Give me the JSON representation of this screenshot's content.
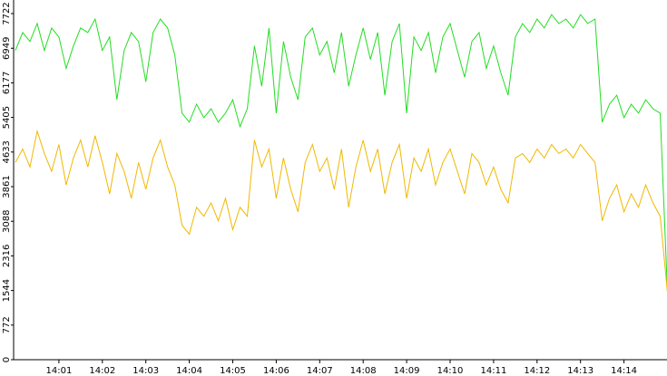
{
  "chart_data": {
    "type": "line",
    "categories": [
      null,
      null,
      null,
      null,
      null,
      null,
      "14:01",
      null,
      null,
      null,
      null,
      null,
      "14:02",
      null,
      null,
      null,
      null,
      null,
      "14:03",
      null,
      null,
      null,
      null,
      null,
      "14:04",
      null,
      null,
      null,
      null,
      null,
      "14:05",
      null,
      null,
      null,
      null,
      null,
      "14:06",
      null,
      null,
      null,
      null,
      null,
      "14:07",
      null,
      null,
      null,
      null,
      null,
      "14:08",
      null,
      null,
      null,
      null,
      null,
      "14:09",
      null,
      null,
      null,
      null,
      null,
      "14:10",
      null,
      null,
      null,
      null,
      null,
      "14:11",
      null,
      null,
      null,
      null,
      null,
      "14:12",
      null,
      null,
      null,
      null,
      null,
      "14:13",
      null,
      null,
      null,
      null,
      null,
      "14:14",
      null,
      null,
      null,
      null,
      null,
      null
    ],
    "series": [
      {
        "color": "#22dd22",
        "values": [
          6900,
          7300,
          7100,
          7500,
          6900,
          7400,
          7200,
          6500,
          7000,
          7400,
          7300,
          7600,
          6900,
          7200,
          5800,
          6900,
          7300,
          7100,
          6200,
          7300,
          7600,
          7400,
          6800,
          5500,
          5300,
          5700,
          5400,
          5600,
          5300,
          5500,
          5800,
          5200,
          5600,
          7000,
          6100,
          7400,
          5500,
          7100,
          6300,
          5800,
          7200,
          7400,
          6800,
          7100,
          6400,
          7300,
          6100,
          6800,
          7400,
          6700,
          7300,
          5900,
          7100,
          7500,
          5500,
          7200,
          6900,
          7300,
          6400,
          7200,
          7500,
          6900,
          6300,
          7100,
          7300,
          6500,
          7000,
          6400,
          5900,
          7200,
          7500,
          7300,
          7600,
          7400,
          7700,
          7500,
          7600,
          7400,
          7700,
          7500,
          7600,
          5300,
          5700,
          5900,
          5400,
          5700,
          5500,
          5800,
          5600,
          5500,
          1500
        ]
      },
      {
        "color": "#f0b800",
        "values": [
          4400,
          4700,
          4300,
          5100,
          4600,
          4200,
          4800,
          3900,
          4500,
          4900,
          4300,
          5000,
          4400,
          3700,
          4600,
          4200,
          3600,
          4400,
          3800,
          4500,
          4900,
          4300,
          3900,
          3000,
          2800,
          3400,
          3200,
          3500,
          3100,
          3600,
          2900,
          3400,
          3200,
          4900,
          4300,
          4700,
          3600,
          4500,
          3800,
          3300,
          4400,
          4800,
          4200,
          4500,
          3800,
          4700,
          3400,
          4300,
          4900,
          4200,
          4700,
          3700,
          4400,
          4800,
          3600,
          4500,
          4200,
          4700,
          3900,
          4400,
          4700,
          4200,
          3700,
          4600,
          4400,
          3900,
          4300,
          3800,
          3500,
          4500,
          4600,
          4400,
          4700,
          4500,
          4800,
          4600,
          4700,
          4500,
          4800,
          4600,
          4400,
          3100,
          3600,
          3900,
          3300,
          3700,
          3400,
          3900,
          3500,
          3200,
          1500
        ]
      }
    ],
    "ylim": [
      0,
      7722
    ],
    "yticks": [
      0,
      772,
      1544,
      2316,
      3088,
      3861,
      4633,
      5405,
      6177,
      6949,
      7722
    ]
  }
}
